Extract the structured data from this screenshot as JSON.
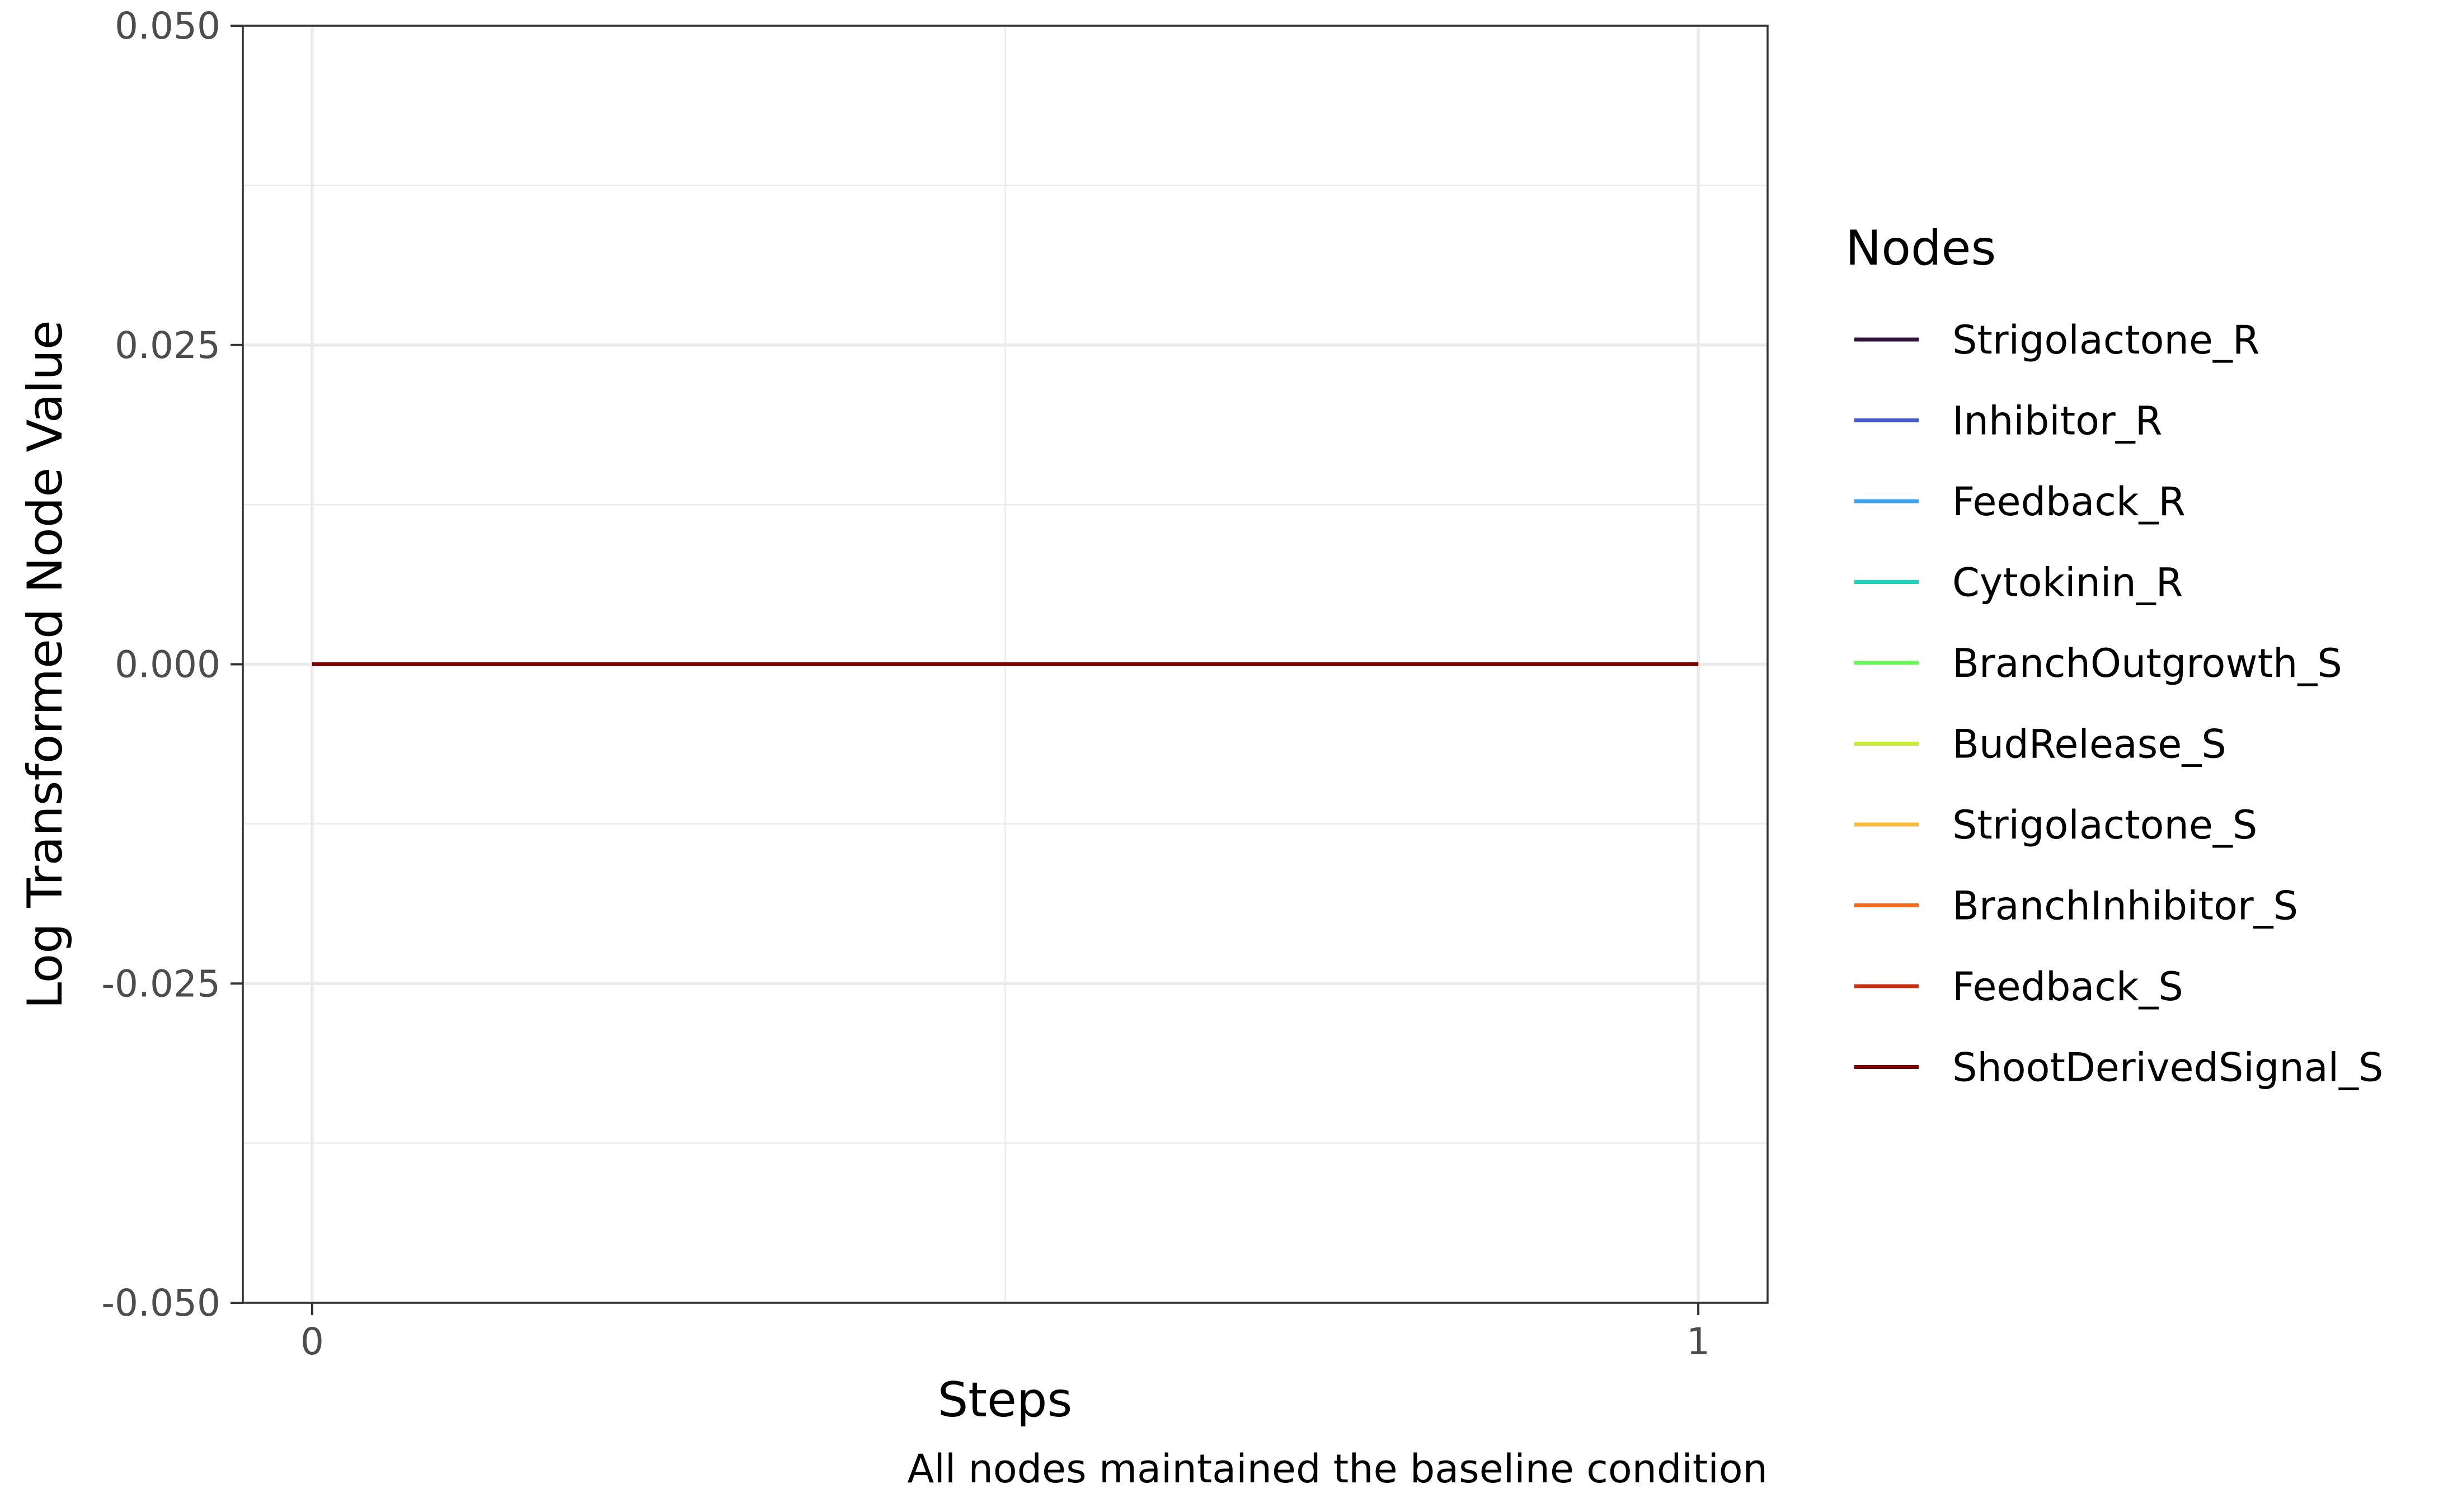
{
  "chart_data": {
    "type": "line",
    "title": "",
    "xlabel": "Steps",
    "ylabel": "Log Transformed Node Value",
    "caption": "All nodes maintained the baseline condition",
    "xlim": [
      -0.05,
      1.05
    ],
    "ylim": [
      -0.05,
      0.05
    ],
    "x_ticks": [
      0,
      1
    ],
    "x_tick_labels": [
      "0",
      "1"
    ],
    "y_ticks": [
      -0.05,
      -0.025,
      0.0,
      0.025,
      0.05
    ],
    "y_tick_labels": [
      "-0.050",
      "-0.025",
      "0.000",
      "0.025",
      "0.050"
    ],
    "grid": true,
    "legend": {
      "title": "Nodes",
      "position": "right"
    },
    "x": [
      0,
      1
    ],
    "series": [
      {
        "name": "Strigolactone_R",
        "color": "#30123b",
        "values": [
          0,
          0
        ]
      },
      {
        "name": "Inhibitor_R",
        "color": "#4457c6",
        "values": [
          0,
          0
        ]
      },
      {
        "name": "Feedback_R",
        "color": "#3ba2f0",
        "values": [
          0,
          0
        ]
      },
      {
        "name": "Cytokinin_R",
        "color": "#1bd4bd",
        "values": [
          0,
          0
        ]
      },
      {
        "name": "BranchOutgrowth_S",
        "color": "#6bf85c",
        "values": [
          0,
          0
        ]
      },
      {
        "name": "BudRelease_S",
        "color": "#c4ec35",
        "values": [
          0,
          0
        ]
      },
      {
        "name": "Strigolactone_S",
        "color": "#f9bb39",
        "values": [
          0,
          0
        ]
      },
      {
        "name": "BranchInhibitor_S",
        "color": "#f26b1d",
        "values": [
          0,
          0
        ]
      },
      {
        "name": "Feedback_S",
        "color": "#c93112",
        "values": [
          0,
          0
        ]
      },
      {
        "name": "ShootDerivedSignal_S",
        "color": "#7a0403",
        "values": [
          0,
          0
        ]
      }
    ]
  }
}
